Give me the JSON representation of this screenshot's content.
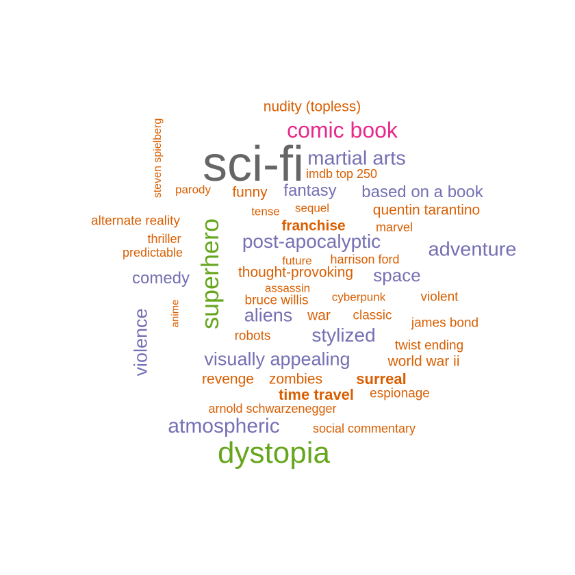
{
  "colors": {
    "dark": "#666666",
    "green": "#66a61e",
    "magenta": "#e7298a",
    "purple": "#7570b3",
    "orange": "#d95f02",
    "background": "#ffffff"
  },
  "words": [
    {
      "text": "sci-fi",
      "color": "dark"
    },
    {
      "text": "dystopia",
      "color": "green"
    },
    {
      "text": "superhero",
      "color": "green"
    },
    {
      "text": "comic book",
      "color": "magenta"
    },
    {
      "text": "martial arts",
      "color": "purple"
    },
    {
      "text": "atmospheric",
      "color": "purple"
    },
    {
      "text": "adventure",
      "color": "purple"
    },
    {
      "text": "post-apocalyptic",
      "color": "purple"
    },
    {
      "text": "visually appealing",
      "color": "purple"
    },
    {
      "text": "stylized",
      "color": "purple"
    },
    {
      "text": "aliens",
      "color": "purple"
    },
    {
      "text": "violence",
      "color": "purple"
    },
    {
      "text": "space",
      "color": "purple"
    },
    {
      "text": "comedy",
      "color": "purple"
    },
    {
      "text": "fantasy",
      "color": "purple"
    },
    {
      "text": "based on a book",
      "color": "purple"
    },
    {
      "text": "nudity (topless)",
      "color": "orange"
    },
    {
      "text": "imdb top 250",
      "color": "orange"
    },
    {
      "text": "steven spielberg",
      "color": "orange"
    },
    {
      "text": "parody",
      "color": "orange"
    },
    {
      "text": "funny",
      "color": "orange"
    },
    {
      "text": "quentin tarantino",
      "color": "orange"
    },
    {
      "text": "tense",
      "color": "orange"
    },
    {
      "text": "sequel",
      "color": "orange"
    },
    {
      "text": "alternate reality",
      "color": "orange"
    },
    {
      "text": "franchise",
      "color": "orange"
    },
    {
      "text": "marvel",
      "color": "orange"
    },
    {
      "text": "thriller",
      "color": "orange"
    },
    {
      "text": "predictable",
      "color": "orange"
    },
    {
      "text": "future",
      "color": "orange"
    },
    {
      "text": "harrison ford",
      "color": "orange"
    },
    {
      "text": "thought-provoking",
      "color": "orange"
    },
    {
      "text": "assassin",
      "color": "orange"
    },
    {
      "text": "bruce willis",
      "color": "orange"
    },
    {
      "text": "cyberpunk",
      "color": "orange"
    },
    {
      "text": "violent",
      "color": "orange"
    },
    {
      "text": "anime",
      "color": "orange"
    },
    {
      "text": "war",
      "color": "orange"
    },
    {
      "text": "classic",
      "color": "orange"
    },
    {
      "text": "james bond",
      "color": "orange"
    },
    {
      "text": "robots",
      "color": "orange"
    },
    {
      "text": "twist ending",
      "color": "orange"
    },
    {
      "text": "world war ii",
      "color": "orange"
    },
    {
      "text": "revenge",
      "color": "orange"
    },
    {
      "text": "zombies",
      "color": "orange"
    },
    {
      "text": "surreal",
      "color": "orange"
    },
    {
      "text": "time travel",
      "color": "orange"
    },
    {
      "text": "espionage",
      "color": "orange"
    },
    {
      "text": "arnold schwarzenegger",
      "color": "orange"
    },
    {
      "text": "social commentary",
      "color": "orange"
    }
  ]
}
